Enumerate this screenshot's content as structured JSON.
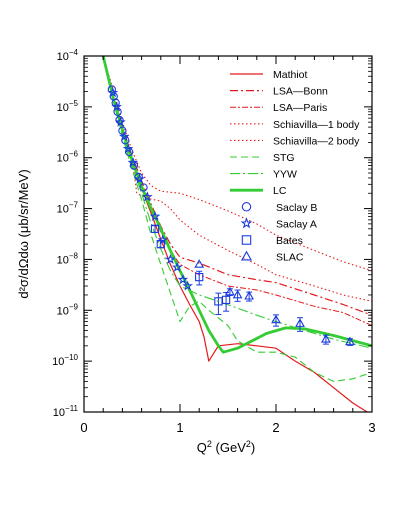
{
  "chart_data": {
    "type": "line",
    "xlabel_base": "Q",
    "xlabel_sup": "2",
    "xlabel_unit": "(GeV",
    "xlabel_unit_sup": "2",
    "xlabel_close": ")",
    "ylabel": "d²σ/dΩdω  (μb/sr/MeV)",
    "xlim": [
      0,
      3
    ],
    "ylim_log10": [
      -11,
      -4
    ],
    "x_ticks": [
      {
        "v": 0,
        "label": "0"
      },
      {
        "v": 1,
        "label": "1"
      },
      {
        "v": 2,
        "label": "2"
      },
      {
        "v": 3,
        "label": "3"
      }
    ],
    "y_ticks": [
      {
        "exp": -4,
        "base": "10",
        "sup": "−4"
      },
      {
        "exp": -5,
        "base": "10",
        "sup": "−5"
      },
      {
        "exp": -6,
        "base": "10",
        "sup": "−6"
      },
      {
        "exp": -7,
        "base": "10",
        "sup": "−7"
      },
      {
        "exp": -8,
        "base": "10",
        "sup": "−8"
      },
      {
        "exp": -9,
        "base": "10",
        "sup": "−9"
      },
      {
        "exp": -10,
        "base": "10",
        "sup": "−10"
      },
      {
        "exp": -11,
        "base": "10",
        "sup": "−11"
      }
    ],
    "scale": "log",
    "legend_position": "top-right",
    "series": [
      {
        "name": "Mathiot",
        "kind": "line",
        "color": "#e41a1c",
        "dash": "",
        "width": 1.2,
        "points": [
          [
            0.2,
            0.0001
          ],
          [
            0.3,
            1.6e-05
          ],
          [
            0.4,
            3.5e-06
          ],
          [
            0.5,
            9e-07
          ],
          [
            0.6,
            2.5e-07
          ],
          [
            0.7,
            8e-08
          ],
          [
            0.8,
            2.5e-08
          ],
          [
            0.9,
            8e-09
          ],
          [
            1.0,
            3e-09
          ],
          [
            1.1,
            1.3e-09
          ],
          [
            1.2,
            6e-10
          ],
          [
            1.25,
            3e-10
          ],
          [
            1.3,
            1e-10
          ],
          [
            1.4,
            2e-10
          ],
          [
            1.6,
            2.2e-10
          ],
          [
            1.8,
            2e-10
          ],
          [
            2.0,
            1.8e-10
          ],
          [
            2.2,
            1e-10
          ],
          [
            2.4,
            6e-11
          ],
          [
            2.6,
            3e-11
          ],
          [
            2.8,
            1.5e-11
          ],
          [
            2.95,
            1e-11
          ]
        ]
      },
      {
        "name": "LSA—Bonn",
        "kind": "line",
        "color": "#e41a1c",
        "dash": "8 3 2 3",
        "width": 1.2,
        "points": [
          [
            0.2,
            0.0001
          ],
          [
            0.3,
            1.8e-05
          ],
          [
            0.4,
            4e-06
          ],
          [
            0.5,
            1.1e-06
          ],
          [
            0.6,
            3.5e-07
          ],
          [
            0.7,
            1.2e-07
          ],
          [
            0.8,
            4.5e-08
          ],
          [
            0.9,
            2e-08
          ],
          [
            1.0,
            1.1e-08
          ],
          [
            1.2,
            8.5e-09
          ],
          [
            1.5,
            5e-09
          ],
          [
            1.8,
            4e-09
          ],
          [
            2.0,
            3.5e-09
          ],
          [
            2.4,
            2e-09
          ],
          [
            2.7,
            1.3e-09
          ],
          [
            3.0,
            8e-10
          ]
        ]
      },
      {
        "name": "LSA—Paris",
        "kind": "line",
        "color": "#e41a1c",
        "dash": "6 2 2 2",
        "width": 1.0,
        "points": [
          [
            0.2,
            0.0001
          ],
          [
            0.3,
            1.7e-05
          ],
          [
            0.4,
            3.8e-06
          ],
          [
            0.5,
            1e-06
          ],
          [
            0.6,
            3e-07
          ],
          [
            0.7,
            1e-07
          ],
          [
            0.8,
            3.5e-08
          ],
          [
            0.9,
            1.5e-08
          ],
          [
            1.0,
            8e-09
          ],
          [
            1.2,
            5e-09
          ],
          [
            1.5,
            3e-09
          ],
          [
            1.8,
            2.5e-09
          ],
          [
            2.0,
            2e-09
          ],
          [
            2.4,
            1.2e-09
          ],
          [
            2.7,
            9e-10
          ],
          [
            3.0,
            5e-10
          ]
        ]
      },
      {
        "name": "Schiavilla—1 body",
        "kind": "line",
        "color": "#e41a1c",
        "dash": "1.5 2.5",
        "width": 1.1,
        "points": [
          [
            0.2,
            0.0001
          ],
          [
            0.3,
            2e-05
          ],
          [
            0.4,
            4e-06
          ],
          [
            0.5,
            1e-06
          ],
          [
            0.55,
            2e-07
          ],
          [
            0.65,
            1.6e-07
          ],
          [
            0.8,
            1.4e-07
          ],
          [
            0.9,
            1e-07
          ],
          [
            1.0,
            6e-08
          ],
          [
            1.2,
            3e-08
          ],
          [
            1.5,
            1.5e-08
          ],
          [
            1.8,
            8e-09
          ],
          [
            2.0,
            5e-09
          ],
          [
            2.4,
            3e-09
          ],
          [
            2.7,
            2e-09
          ],
          [
            3.0,
            1.5e-09
          ]
        ]
      },
      {
        "name": "Schiavilla—2 body",
        "kind": "line",
        "color": "#e41a1c",
        "dash": "1.5 2.5",
        "width": 1.1,
        "points": [
          [
            0.2,
            0.0001
          ],
          [
            0.3,
            2.3e-05
          ],
          [
            0.4,
            5e-06
          ],
          [
            0.5,
            1.4e-06
          ],
          [
            0.6,
            5e-07
          ],
          [
            0.7,
            2.8e-07
          ],
          [
            0.8,
            2.2e-07
          ],
          [
            1.0,
            2e-07
          ],
          [
            1.2,
            1.5e-07
          ],
          [
            1.5,
            9e-08
          ],
          [
            1.8,
            5e-08
          ],
          [
            2.0,
            3e-08
          ],
          [
            2.4,
            1.5e-08
          ],
          [
            2.7,
            9e-09
          ],
          [
            3.0,
            6e-09
          ]
        ]
      },
      {
        "name": "STG",
        "kind": "line",
        "color": "#33cc33",
        "dash": "7 4",
        "width": 1.1,
        "points": [
          [
            0.2,
            0.0001
          ],
          [
            0.3,
            1.4e-05
          ],
          [
            0.4,
            2.7e-06
          ],
          [
            0.5,
            6e-07
          ],
          [
            0.6,
            1.5e-07
          ],
          [
            0.7,
            3e-08
          ],
          [
            0.8,
            8e-09
          ],
          [
            0.9,
            2.2e-09
          ],
          [
            1.0,
            6e-10
          ],
          [
            1.1,
            1.2e-09
          ],
          [
            1.2,
            1.5e-09
          ],
          [
            1.3,
            1e-09
          ],
          [
            1.5,
            5e-10
          ],
          [
            1.6,
            2.5e-10
          ],
          [
            1.8,
            1.5e-10
          ],
          [
            2.0,
            1.5e-10
          ],
          [
            2.2,
            1.2e-10
          ],
          [
            2.4,
            6e-11
          ],
          [
            2.6,
            4e-11
          ],
          [
            2.8,
            4.5e-11
          ],
          [
            3.0,
            6e-11
          ]
        ]
      },
      {
        "name": "YYW",
        "kind": "line",
        "color": "#33cc33",
        "dash": "10 3 2 3",
        "width": 1.1,
        "points": [
          [
            0.2,
            0.0001
          ],
          [
            0.3,
            1.6e-05
          ],
          [
            0.4,
            3.2e-06
          ],
          [
            0.5,
            7e-07
          ],
          [
            0.6,
            2e-07
          ],
          [
            0.7,
            5e-08
          ],
          [
            0.8,
            1.6e-08
          ],
          [
            0.9,
            6e-09
          ],
          [
            1.0,
            3e-09
          ],
          [
            1.2,
            2e-09
          ],
          [
            1.4,
            1.5e-09
          ],
          [
            1.6,
            1.1e-09
          ],
          [
            1.8,
            8e-10
          ],
          [
            2.0,
            6e-10
          ],
          [
            2.3,
            4e-10
          ],
          [
            2.6,
            2.7e-10
          ],
          [
            3.0,
            1.8e-10
          ]
        ]
      },
      {
        "name": "LC",
        "kind": "line",
        "color": "#33cc33",
        "dash": "",
        "width": 2.8,
        "points": [
          [
            0.2,
            0.0001
          ],
          [
            0.3,
            1.6e-05
          ],
          [
            0.4,
            3.5e-06
          ],
          [
            0.5,
            9e-07
          ],
          [
            0.6,
            2.7e-07
          ],
          [
            0.7,
            1e-07
          ],
          [
            0.8,
            4e-08
          ],
          [
            0.9,
            1.5e-08
          ],
          [
            1.0,
            6e-09
          ],
          [
            1.1,
            2.5e-09
          ],
          [
            1.2,
            1e-09
          ],
          [
            1.3,
            4e-10
          ],
          [
            1.4,
            2e-10
          ],
          [
            1.45,
            1.5e-10
          ],
          [
            1.6,
            1.8e-10
          ],
          [
            1.75,
            2.5e-10
          ],
          [
            1.9,
            3.5e-10
          ],
          [
            2.1,
            4.5e-10
          ],
          [
            2.3,
            4.3e-10
          ],
          [
            2.6,
            3.2e-10
          ],
          [
            3.0,
            2e-10
          ]
        ]
      }
    ],
    "points_sets": [
      {
        "name": "Saclay B",
        "symbol": "circle",
        "color": "#1a3ae0",
        "points": [
          [
            0.29,
            2.2e-05,
            0.1
          ],
          [
            0.31,
            1.6e-05,
            0.1
          ],
          [
            0.33,
            1.2e-05,
            0.1
          ],
          [
            0.35,
            8e-06,
            0.1
          ],
          [
            0.37,
            5.5e-06,
            0.1
          ],
          [
            0.4,
            3.4e-06,
            0.1
          ],
          [
            0.43,
            2.2e-06,
            0.1
          ],
          [
            0.47,
            1.3e-06,
            0.1
          ],
          [
            0.52,
            7e-07,
            0.1
          ],
          [
            0.57,
            4.2e-07,
            0.1
          ],
          [
            0.62,
            2.6e-07,
            0.1
          ]
        ]
      },
      {
        "name": "Saclay A",
        "symbol": "star",
        "color": "#1a3ae0",
        "points": [
          [
            0.3,
            1.9e-05,
            0.1
          ],
          [
            0.34,
            1e-05,
            0.1
          ],
          [
            0.38,
            5e-06,
            0.1
          ],
          [
            0.42,
            2.6e-06,
            0.1
          ],
          [
            0.46,
            1.5e-06,
            0.1
          ],
          [
            0.51,
            8e-07,
            0.1
          ],
          [
            0.58,
            3.8e-07,
            0.1
          ],
          [
            0.66,
            1.7e-07,
            0.1
          ],
          [
            0.74,
            7e-08,
            0.1
          ],
          [
            0.82,
            2.4e-08,
            0.1
          ],
          [
            0.9,
            1e-08,
            0.1
          ],
          [
            0.97,
            7e-09,
            0.1
          ],
          [
            1.03,
            4e-09,
            0.1
          ],
          [
            1.08,
            3e-09,
            0.1
          ]
        ]
      },
      {
        "name": "Bates",
        "symbol": "square",
        "color": "#1a3ae0",
        "points": [
          [
            0.74,
            4e-08,
            0.15
          ],
          [
            0.8,
            2e-08,
            0.15
          ],
          [
            1.2,
            4.5e-09,
            0.3
          ],
          [
            1.4,
            1.5e-09,
            0.45
          ],
          [
            1.48,
            1.6e-09,
            0.4
          ]
        ]
      },
      {
        "name": "SLAC",
        "symbol": "triangle",
        "color": "#1a3ae0",
        "points": [
          [
            1.2,
            8e-09,
            0.12
          ],
          [
            1.52,
            2.3e-09,
            0.15
          ],
          [
            1.6,
            2e-09,
            0.25
          ],
          [
            1.72,
            1.9e-09,
            0.2
          ],
          [
            2.0,
            6.5e-10,
            0.25
          ],
          [
            2.25,
            5.5e-10,
            0.3
          ],
          [
            2.52,
            2.7e-10,
            0.2
          ],
          [
            2.77,
            2.4e-10,
            0.15
          ]
        ]
      }
    ]
  }
}
